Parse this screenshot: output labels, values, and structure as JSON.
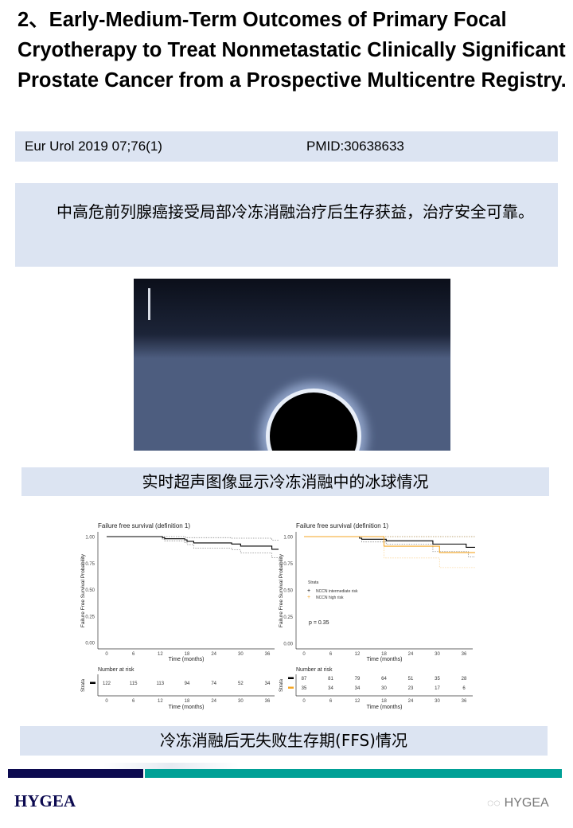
{
  "title": "2、Early-Medium-Term Outcomes of Primary Focal Cryotherapy to Treat Nonmetastatic Clinically Significant Prostate Cancer from a Prospective Multicentre Registry.",
  "citation": {
    "journal": "Eur Urol 2019 07;76(1)",
    "pmid": "PMID:30638633"
  },
  "summary": "中高危前列腺癌接受局部冷冻消融治疗后生存获益，治疗安全可靠。",
  "caption_ultrasound": "实时超声图像显示冷冻消融中的冰球情况",
  "caption_ffs": "冷冻消融后无失败生存期(FFS)情况",
  "footer": {
    "logo": "HYGEA",
    "watermark": "HYGEA",
    "colors": {
      "navy": "#0c0a50",
      "teal": "#00a096"
    }
  },
  "chart_data": [
    {
      "type": "line",
      "title": "Failure free survival (definition 1)",
      "xlabel": "Time (months)",
      "ylabel": "Failure Free Survival Probability",
      "xticks": [
        0,
        6,
        12,
        18,
        24,
        30,
        36
      ],
      "yticks": [
        "0.00",
        "0.25",
        "0.50",
        "0.75",
        "1.00"
      ],
      "xlim": [
        0,
        38.5
      ],
      "ylim": [
        0,
        1
      ],
      "series": [
        {
          "color": "#000000",
          "steps": [
            [
              0,
              1
            ],
            [
              12.5,
              0.99
            ],
            [
              13,
              0.98
            ],
            [
              17.5,
              0.97
            ],
            [
              18,
              0.955
            ],
            [
              19.5,
              0.94
            ],
            [
              28,
              0.93
            ],
            [
              30,
              0.91
            ],
            [
              37,
              0.88
            ],
            [
              38.5,
              0.88
            ]
          ],
          "ci_upper": [
            [
              0,
              1
            ],
            [
              12.5,
              1
            ],
            [
              17.5,
              0.995
            ],
            [
              18,
              0.99
            ],
            [
              28,
              0.985
            ],
            [
              37,
              0.965
            ],
            [
              38.5,
              0.965
            ]
          ],
          "ci_lower": [
            [
              0,
              1
            ],
            [
              12.5,
              0.975
            ],
            [
              13,
              0.96
            ],
            [
              17.5,
              0.945
            ],
            [
              18,
              0.925
            ],
            [
              19.5,
              0.89
            ],
            [
              28,
              0.875
            ],
            [
              30,
              0.845
            ],
            [
              37,
              0.8
            ],
            [
              38.5,
              0.8
            ]
          ]
        }
      ],
      "risk_table": {
        "title": "Number at risk",
        "ylabel": "Strata",
        "rows": [
          {
            "color": "#000000",
            "values": [
              122,
              115,
              113,
              94,
              74,
              52,
              34
            ]
          }
        ]
      }
    },
    {
      "type": "line",
      "title": "Failure free survival (definition 1)",
      "xlabel": "Time (months)",
      "ylabel": "Failure Free Survival Probability",
      "xticks": [
        0,
        6,
        12,
        18,
        24,
        30,
        36
      ],
      "yticks": [
        "0.00",
        "0.25",
        "0.50",
        "0.75",
        "1.00"
      ],
      "xlim": [
        0,
        38.5
      ],
      "ylim": [
        0,
        1
      ],
      "legend": {
        "title": "Strata",
        "position": "center-left"
      },
      "annotation": "p = 0.35",
      "series": [
        {
          "name": "NCCN intermediate risk",
          "color": "#000000",
          "steps": [
            [
              0,
              1
            ],
            [
              12.5,
              0.985
            ],
            [
              13,
              0.975
            ],
            [
              18.5,
              0.96
            ],
            [
              29,
              0.93
            ],
            [
              36.5,
              0.9
            ],
            [
              38.5,
              0.9
            ]
          ],
          "ci_upper": [
            [
              0,
              1
            ],
            [
              38.5,
              1
            ]
          ],
          "ci_lower": [
            [
              0,
              1
            ],
            [
              13,
              0.95
            ],
            [
              18.5,
              0.93
            ],
            [
              29,
              0.86
            ],
            [
              37,
              0.81
            ],
            [
              38.5,
              0.81
            ]
          ]
        },
        {
          "name": "NCCN high risk",
          "color": "#f5a623",
          "steps": [
            [
              0,
              1
            ],
            [
              18,
              0.91
            ],
            [
              30.5,
              0.85
            ],
            [
              38.5,
              0.85
            ]
          ],
          "ci_upper": [
            [
              0,
              1
            ],
            [
              38.5,
              1
            ]
          ],
          "ci_lower": [
            [
              0,
              1
            ],
            [
              18,
              0.8
            ],
            [
              30.5,
              0.71
            ],
            [
              38.5,
              0.71
            ]
          ]
        }
      ],
      "risk_table": {
        "title": "Number at risk",
        "ylabel": "Strata",
        "rows": [
          {
            "color": "#000000",
            "values": [
              87,
              81,
              79,
              64,
              51,
              35,
              28
            ]
          },
          {
            "color": "#f5a623",
            "values": [
              35,
              34,
              34,
              30,
              23,
              17,
              6
            ]
          }
        ]
      }
    }
  ]
}
